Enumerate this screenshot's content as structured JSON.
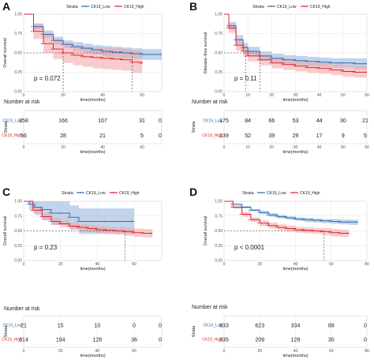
{
  "colors": {
    "low": "#2E6DB4",
    "high": "#E0222B",
    "low_band": "#8FB1DC",
    "high_band": "#F2A3A3",
    "grid": "#E6E6E6"
  },
  "legend": {
    "title": "Strata",
    "low_label": "CK19_Low",
    "high_label": "CK19_High"
  },
  "risk_table": {
    "title": "Number at risk",
    "strata_label": "Strata",
    "low_label": "CK19_Low",
    "high_label": "CK19_High"
  },
  "chart_data": [
    {
      "type": "line",
      "panel": "A",
      "xlabel": "time(months)",
      "ylabel": "Overall survival",
      "annotation": "p = 0.072",
      "xlim": [
        0,
        70
      ],
      "ylim": [
        0,
        1
      ],
      "xticks": [
        0,
        20,
        40,
        60
      ],
      "yticks": [
        0,
        0.25,
        0.5,
        0.75,
        1
      ],
      "risk_xticks": [
        0,
        20,
        40,
        60
      ],
      "median_lines": [
        20,
        55
      ],
      "series": [
        {
          "name": "CK19_Low",
          "x": [
            0,
            5,
            10,
            15,
            20,
            25,
            30,
            35,
            40,
            45,
            50,
            55,
            60,
            70
          ],
          "y": [
            1,
            0.84,
            0.74,
            0.66,
            0.61,
            0.58,
            0.56,
            0.54,
            0.52,
            0.51,
            0.5,
            0.49,
            0.48,
            0.48
          ],
          "lower": [
            1,
            0.8,
            0.69,
            0.61,
            0.56,
            0.52,
            0.5,
            0.48,
            0.45,
            0.44,
            0.43,
            0.42,
            0.41,
            0.41
          ],
          "upper": [
            1,
            0.88,
            0.79,
            0.71,
            0.66,
            0.64,
            0.62,
            0.6,
            0.59,
            0.58,
            0.57,
            0.56,
            0.55,
            0.55
          ]
        },
        {
          "name": "CK19_High",
          "x": [
            0,
            5,
            10,
            15,
            20,
            25,
            30,
            35,
            40,
            45,
            50,
            55,
            60
          ],
          "y": [
            1,
            0.78,
            0.62,
            0.55,
            0.5,
            0.47,
            0.45,
            0.44,
            0.43,
            0.42,
            0.41,
            0.38,
            0.36
          ],
          "lower": [
            1,
            0.68,
            0.5,
            0.42,
            0.37,
            0.34,
            0.32,
            0.3,
            0.29,
            0.28,
            0.27,
            0.24,
            0.21
          ],
          "upper": [
            1,
            0.88,
            0.74,
            0.68,
            0.63,
            0.6,
            0.58,
            0.57,
            0.57,
            0.56,
            0.55,
            0.53,
            0.51
          ]
        }
      ],
      "risk": {
        "x": [
          0,
          20,
          40,
          60,
          80
        ],
        "CK19_Low": [
          258,
          166,
          107,
          31,
          0
        ],
        "CK19_High": [
          56,
          28,
          21,
          5,
          0
        ]
      }
    },
    {
      "type": "line",
      "panel": "B",
      "xlabel": "time(months)",
      "ylabel": "Disease–free survival",
      "annotation": "p = 0.11",
      "xlim": [
        0,
        60
      ],
      "ylim": [
        0,
        1
      ],
      "xticks": [
        0,
        10,
        20,
        30,
        40,
        50,
        60
      ],
      "yticks": [
        0,
        0.25,
        0.5,
        0.75,
        1
      ],
      "risk_xticks": [
        0,
        10,
        20,
        30,
        40,
        50,
        60
      ],
      "median_lines": [
        9,
        15
      ],
      "series": [
        {
          "name": "CK19_Low",
          "x": [
            0,
            2,
            5,
            8,
            10,
            15,
            20,
            25,
            30,
            35,
            40,
            45,
            50,
            55,
            60
          ],
          "y": [
            1,
            0.85,
            0.67,
            0.57,
            0.52,
            0.46,
            0.43,
            0.41,
            0.4,
            0.39,
            0.38,
            0.37,
            0.37,
            0.36,
            0.36
          ],
          "lower": [
            1,
            0.8,
            0.61,
            0.51,
            0.46,
            0.4,
            0.37,
            0.35,
            0.34,
            0.33,
            0.32,
            0.31,
            0.31,
            0.29,
            0.28
          ],
          "upper": [
            1,
            0.9,
            0.73,
            0.63,
            0.58,
            0.52,
            0.49,
            0.47,
            0.46,
            0.45,
            0.44,
            0.43,
            0.43,
            0.43,
            0.44
          ]
        },
        {
          "name": "CK19_High",
          "x": [
            0,
            2,
            5,
            8,
            10,
            15,
            20,
            25,
            30,
            35,
            40,
            45,
            50,
            55,
            60
          ],
          "y": [
            1,
            0.82,
            0.6,
            0.52,
            0.46,
            0.41,
            0.37,
            0.35,
            0.33,
            0.31,
            0.3,
            0.28,
            0.26,
            0.25,
            0.25
          ],
          "lower": [
            1,
            0.76,
            0.53,
            0.45,
            0.39,
            0.34,
            0.3,
            0.28,
            0.26,
            0.24,
            0.23,
            0.21,
            0.19,
            0.18,
            0.17
          ],
          "upper": [
            1,
            0.88,
            0.67,
            0.59,
            0.53,
            0.48,
            0.44,
            0.42,
            0.4,
            0.38,
            0.37,
            0.35,
            0.34,
            0.33,
            0.33
          ]
        }
      ],
      "risk": {
        "x": [
          0,
          10,
          20,
          30,
          40,
          50,
          60
        ],
        "CK19_Low": [
          175,
          84,
          66,
          53,
          44,
          30,
          21
        ],
        "CK19_High": [
          139,
          52,
          39,
          29,
          17,
          9,
          5
        ]
      }
    },
    {
      "type": "line",
      "panel": "C",
      "xlabel": "time(months)",
      "ylabel": "Overall survival",
      "annotation": "p = 0.23",
      "xlim": [
        0,
        75
      ],
      "ylim": [
        0,
        1
      ],
      "xticks": [
        0,
        20,
        40,
        60
      ],
      "yticks": [
        0,
        0.25,
        0.5,
        0.75,
        1
      ],
      "risk_xticks": [
        0,
        20,
        40,
        60
      ],
      "median_lines": [
        55
      ],
      "series": [
        {
          "name": "CK19_Low",
          "x": [
            0,
            3,
            6,
            10,
            15,
            20,
            25,
            30,
            45,
            50,
            60
          ],
          "y": [
            1,
            0.95,
            0.9,
            0.86,
            0.8,
            0.8,
            0.73,
            0.66,
            0.66,
            0.66,
            0.66
          ],
          "lower": [
            1,
            0.86,
            0.77,
            0.68,
            0.6,
            0.6,
            0.53,
            0.45,
            0.45,
            0.45,
            0.45
          ],
          "upper": [
            1,
            1,
            1,
            1,
            1,
            1,
            0.93,
            0.88,
            0.88,
            0.88,
            0.88
          ]
        },
        {
          "name": "CK19_High",
          "x": [
            0,
            5,
            10,
            15,
            20,
            25,
            30,
            35,
            40,
            45,
            50,
            55,
            60,
            65,
            70
          ],
          "y": [
            1,
            0.85,
            0.74,
            0.66,
            0.62,
            0.58,
            0.56,
            0.54,
            0.52,
            0.51,
            0.5,
            0.49,
            0.47,
            0.46,
            0.46
          ],
          "lower": [
            1,
            0.8,
            0.68,
            0.6,
            0.56,
            0.52,
            0.5,
            0.48,
            0.46,
            0.45,
            0.44,
            0.42,
            0.4,
            0.39,
            0.39
          ],
          "upper": [
            1,
            0.9,
            0.8,
            0.72,
            0.68,
            0.64,
            0.62,
            0.6,
            0.58,
            0.57,
            0.56,
            0.55,
            0.54,
            0.53,
            0.53
          ]
        }
      ],
      "risk": {
        "x": [
          0,
          20,
          40,
          60,
          80
        ],
        "CK19_Low": [
          21,
          15,
          10,
          0,
          0
        ],
        "CK19_High": [
          314,
          194,
          128,
          36,
          0
        ]
      }
    },
    {
      "type": "line",
      "panel": "D",
      "xlabel": "time(months)",
      "ylabel": "Overall survival",
      "annotation": "p < 0.0001",
      "xlim": [
        0,
        80
      ],
      "ylim": [
        0,
        1
      ],
      "xticks": [
        0,
        20,
        40,
        60,
        80
      ],
      "yticks": [
        0,
        0.25,
        0.5,
        0.75,
        1
      ],
      "risk_xticks": [
        0,
        20,
        40,
        60,
        80
      ],
      "median_lines": [
        56
      ],
      "series": [
        {
          "name": "CK19_Low",
          "x": [
            0,
            5,
            10,
            15,
            20,
            25,
            30,
            35,
            40,
            45,
            50,
            55,
            60,
            65,
            70,
            75
          ],
          "y": [
            1,
            0.95,
            0.9,
            0.85,
            0.81,
            0.77,
            0.74,
            0.72,
            0.7,
            0.69,
            0.68,
            0.67,
            0.66,
            0.65,
            0.65,
            0.65
          ],
          "lower": [
            1,
            0.94,
            0.88,
            0.83,
            0.78,
            0.74,
            0.71,
            0.69,
            0.67,
            0.65,
            0.64,
            0.63,
            0.62,
            0.61,
            0.6,
            0.6
          ],
          "upper": [
            1,
            0.96,
            0.92,
            0.87,
            0.84,
            0.8,
            0.77,
            0.75,
            0.73,
            0.72,
            0.71,
            0.7,
            0.7,
            0.69,
            0.69,
            0.69
          ]
        },
        {
          "name": "CK19_High",
          "x": [
            0,
            5,
            10,
            15,
            20,
            25,
            30,
            35,
            40,
            45,
            50,
            55,
            60,
            65,
            70
          ],
          "y": [
            1,
            0.9,
            0.78,
            0.69,
            0.63,
            0.59,
            0.56,
            0.54,
            0.52,
            0.51,
            0.5,
            0.49,
            0.47,
            0.46,
            0.46
          ],
          "lower": [
            1,
            0.87,
            0.74,
            0.65,
            0.58,
            0.54,
            0.51,
            0.49,
            0.47,
            0.46,
            0.45,
            0.43,
            0.41,
            0.4,
            0.4
          ],
          "upper": [
            1,
            0.93,
            0.82,
            0.73,
            0.68,
            0.64,
            0.61,
            0.59,
            0.57,
            0.56,
            0.55,
            0.55,
            0.53,
            0.52,
            0.52
          ]
        }
      ],
      "risk": {
        "x": [
          0,
          20,
          40,
          60,
          80
        ],
        "CK19_Low": [
          833,
          623,
          334,
          89,
          0
        ],
        "CK19_High": [
          335,
          209,
          128,
          30,
          0
        ]
      }
    }
  ]
}
